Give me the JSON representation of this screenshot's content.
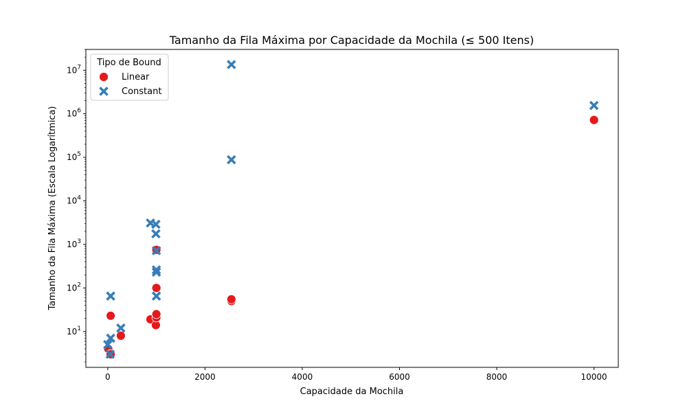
{
  "chart_data": {
    "type": "scatter",
    "title": "Tamanho da Fila Máxima por Capacidade da Mochila (≤ 500 Itens)",
    "xlabel": "Capacidade da Mochila",
    "ylabel": "Tamanho da Fila Máxima (Escala Logarítmica)",
    "xlim": [
      -450,
      10500
    ],
    "ylim": [
      1.5,
      30000000
    ],
    "yscale": "log",
    "x_ticks": [
      0,
      2000,
      4000,
      6000,
      8000,
      10000
    ],
    "y_ticks": [
      {
        "base": "10",
        "exp": "1",
        "value": 10
      },
      {
        "base": "10",
        "exp": "2",
        "value": 100
      },
      {
        "base": "10",
        "exp": "3",
        "value": 1000
      },
      {
        "base": "10",
        "exp": "4",
        "value": 10000
      },
      {
        "base": "10",
        "exp": "5",
        "value": 100000
      },
      {
        "base": "10",
        "exp": "6",
        "value": 1000000
      },
      {
        "base": "10",
        "exp": "7",
        "value": 10000000
      }
    ],
    "grid": false,
    "legend": {
      "title": "Tipo de Bound",
      "position": "top-left"
    },
    "series": [
      {
        "name": "Linear",
        "color": "#e41a1c",
        "marker": "circle",
        "points": [
          {
            "x": 10,
            "y": 4
          },
          {
            "x": 50,
            "y": 3
          },
          {
            "x": 60,
            "y": 3
          },
          {
            "x": 60,
            "y": 23
          },
          {
            "x": 269,
            "y": 8
          },
          {
            "x": 878,
            "y": 19
          },
          {
            "x": 990,
            "y": 14
          },
          {
            "x": 1000,
            "y": 21
          },
          {
            "x": 1000,
            "y": 25
          },
          {
            "x": 1000,
            "y": 100
          },
          {
            "x": 1000,
            "y": 750
          },
          {
            "x": 2543,
            "y": 50
          },
          {
            "x": 2543,
            "y": 55
          },
          {
            "x": 10000,
            "y": 720000
          }
        ]
      },
      {
        "name": "Constant",
        "color": "#377eb8",
        "marker": "x",
        "points": [
          {
            "x": 0,
            "y": 5
          },
          {
            "x": 50,
            "y": 3
          },
          {
            "x": 60,
            "y": 65
          },
          {
            "x": 60,
            "y": 7
          },
          {
            "x": 269,
            "y": 12
          },
          {
            "x": 878,
            "y": 3100
          },
          {
            "x": 990,
            "y": 1750
          },
          {
            "x": 990,
            "y": 2900
          },
          {
            "x": 1000,
            "y": 65
          },
          {
            "x": 1000,
            "y": 230
          },
          {
            "x": 1000,
            "y": 260
          },
          {
            "x": 1000,
            "y": 720
          },
          {
            "x": 2543,
            "y": 88000
          },
          {
            "x": 2543,
            "y": 13500000
          },
          {
            "x": 10000,
            "y": 1550000
          }
        ]
      }
    ]
  }
}
